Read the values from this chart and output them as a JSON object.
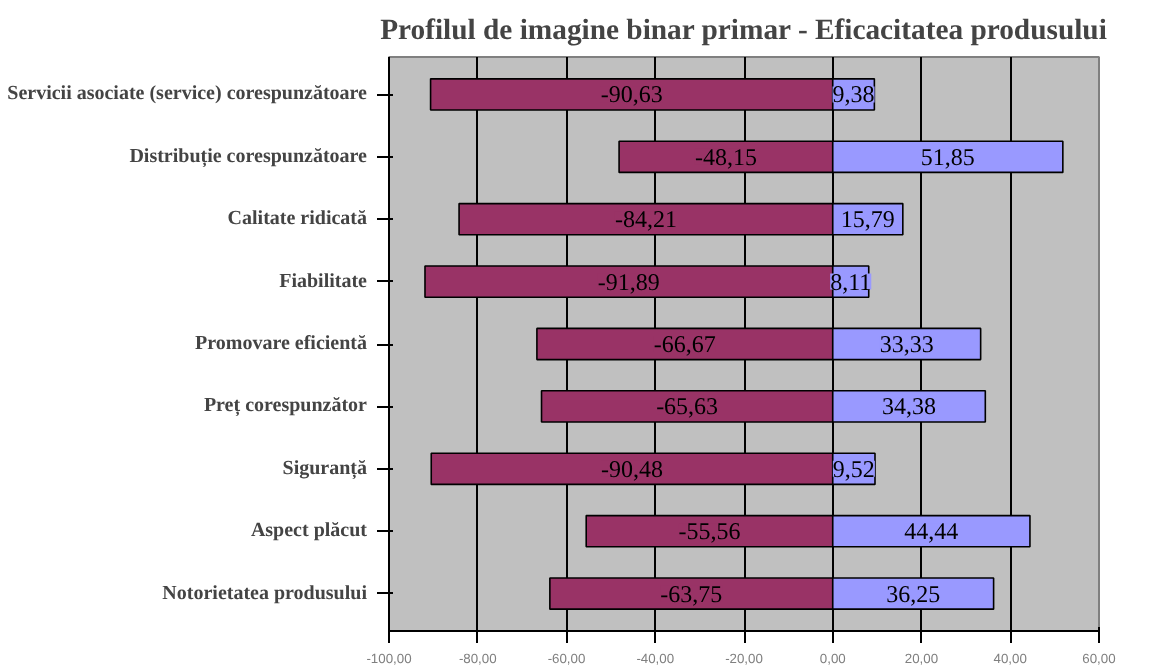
{
  "chart_data": {
    "type": "bar",
    "orientation": "horizontal",
    "stacked": true,
    "title": "Profilul de imagine binar primar - Eficacitatea produsului",
    "categories": [
      "Servicii asociate (service) corespunzătoare",
      "Distribuție corespunzătoare",
      "Calitate ridicată",
      "Fiabilitate",
      "Promovare eficientă",
      "Preț corespunzător",
      "Siguranță",
      "Aspect plăcut",
      "Notorietatea produsului"
    ],
    "series": [
      {
        "color": "#993366",
        "values": [
          -90.63,
          -48.15,
          -84.21,
          -91.89,
          -66.67,
          -65.63,
          -90.48,
          -55.56,
          -63.75
        ],
        "value_labels": [
          "-90,63",
          "-48,15",
          "-84,21",
          "-91,89",
          "-66,67",
          "-65,63",
          "-90,48",
          "-55,56",
          "-63,75"
        ]
      },
      {
        "color": "#9999ff",
        "values": [
          9.38,
          51.85,
          15.79,
          8.11,
          33.33,
          34.38,
          9.52,
          44.44,
          36.25
        ],
        "value_labels": [
          "9,38",
          "51,85",
          "15,79",
          "8,11",
          "33,33",
          "34,38",
          "9,52",
          "44,44",
          "36,25"
        ]
      }
    ],
    "xlim": [
      -100,
      60
    ],
    "xticks": [
      {
        "value": -100,
        "label": "-100,00"
      },
      {
        "value": -80,
        "label": "-80,00"
      },
      {
        "value": -60,
        "label": "-60,00"
      },
      {
        "value": -40,
        "label": "-40,00"
      },
      {
        "value": -20,
        "label": "-20,00"
      },
      {
        "value": 0,
        "label": "0,00"
      },
      {
        "value": 20,
        "label": "20,00"
      },
      {
        "value": 40,
        "label": "40,00"
      },
      {
        "value": 60,
        "label": "60,00"
      }
    ],
    "grid": "x"
  }
}
